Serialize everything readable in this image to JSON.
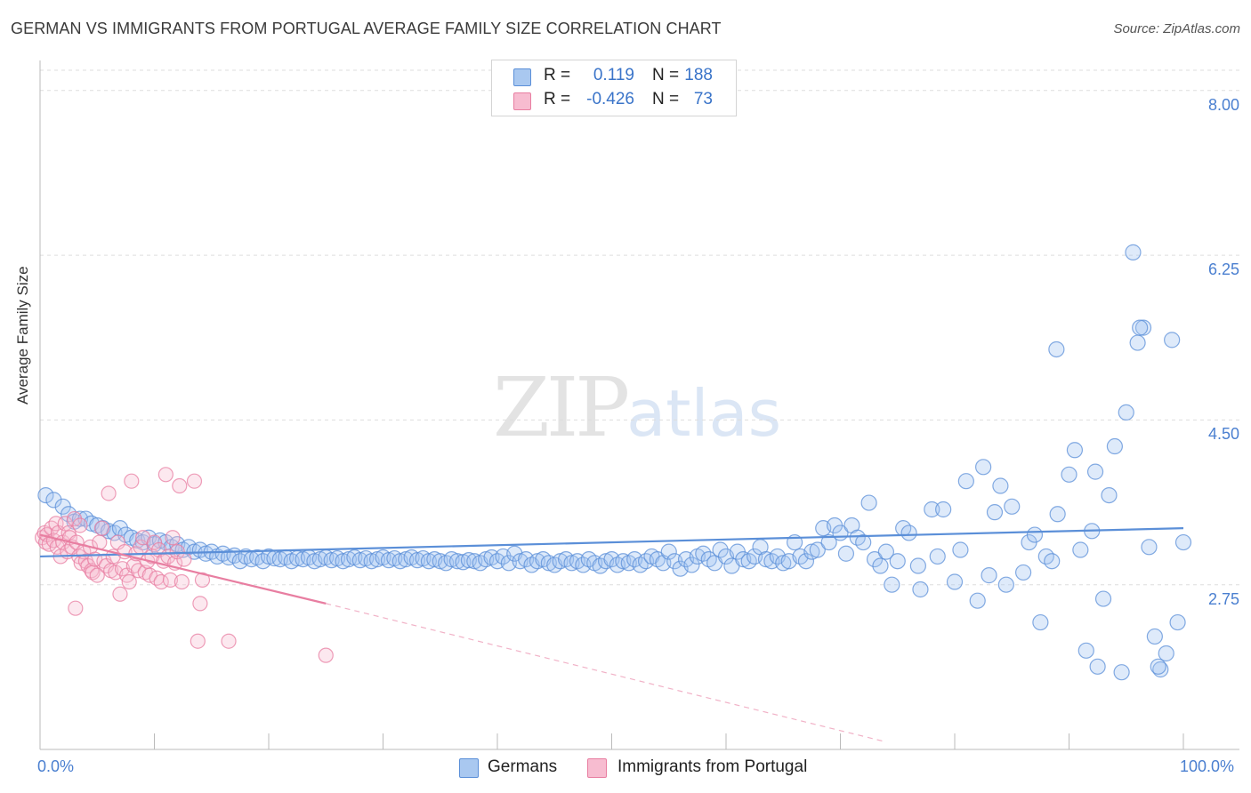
{
  "title": "GERMAN VS IMMIGRANTS FROM PORTUGAL AVERAGE FAMILY SIZE CORRELATION CHART",
  "source": "Source: ZipAtlas.com",
  "watermark": {
    "zip": "ZIP",
    "atlas": "atlas"
  },
  "legend": {
    "rows": [
      {
        "r_label": "R =",
        "r_value": "0.119",
        "n_label": "N =",
        "n_value": "188",
        "color": "#a9c8f0",
        "border": "#5b8fd8"
      },
      {
        "r_label": "R =",
        "r_value": "-0.426",
        "n_label": "N =",
        "n_value": "73",
        "color": "#f7bcd0",
        "border": "#e87ea1"
      }
    ]
  },
  "bottom_legend": [
    {
      "label": "Germans",
      "color": "#a9c8f0",
      "border": "#5b8fd8"
    },
    {
      "label": "Immigrants from Portugal",
      "color": "#f7bcd0",
      "border": "#e87ea1"
    }
  ],
  "chart_data": {
    "type": "scatter",
    "title": "GERMAN VS IMMIGRANTS FROM PORTUGAL AVERAGE FAMILY SIZE CORRELATION CHART",
    "ylabel": "Average Family Size",
    "xlabel": "",
    "xlim": [
      0,
      100
    ],
    "ylim": [
      1.0,
      8.3
    ],
    "x_tick_labels": [
      "0.0%",
      "100.0%"
    ],
    "y_ticks": [
      2.75,
      4.5,
      6.25,
      8.0
    ],
    "y_tick_labels": [
      "2.75",
      "4.50",
      "6.25",
      "8.00"
    ],
    "grid": "horizontal dashed",
    "series": [
      {
        "name": "Germans",
        "color": "#5b8fd8",
        "fill": "rgba(160,195,240,0.35)",
        "trend": {
          "x": [
            0,
            100
          ],
          "y": [
            3.05,
            3.35
          ]
        },
        "points": [
          [
            0.5,
            3.7
          ],
          [
            1.2,
            3.65
          ],
          [
            2,
            3.58
          ],
          [
            2.5,
            3.5
          ],
          [
            3,
            3.42
          ],
          [
            3.5,
            3.45
          ],
          [
            4,
            3.45
          ],
          [
            4.5,
            3.4
          ],
          [
            5,
            3.38
          ],
          [
            5.5,
            3.35
          ],
          [
            6,
            3.32
          ],
          [
            6.5,
            3.3
          ],
          [
            7,
            3.35
          ],
          [
            7.5,
            3.28
          ],
          [
            8,
            3.25
          ],
          [
            8.5,
            3.22
          ],
          [
            9,
            3.2
          ],
          [
            9.5,
            3.25
          ],
          [
            10,
            3.18
          ],
          [
            10.5,
            3.22
          ],
          [
            11,
            3.2
          ],
          [
            11.5,
            3.15
          ],
          [
            12,
            3.18
          ],
          [
            12.5,
            3.12
          ],
          [
            13,
            3.15
          ],
          [
            13.5,
            3.1
          ],
          [
            14,
            3.12
          ],
          [
            14.5,
            3.08
          ],
          [
            15,
            3.1
          ],
          [
            15.5,
            3.05
          ],
          [
            16,
            3.08
          ],
          [
            16.5,
            3.04
          ],
          [
            17,
            3.06
          ],
          [
            17.5,
            3.0
          ],
          [
            18,
            3.05
          ],
          [
            18.5,
            3.02
          ],
          [
            19,
            3.04
          ],
          [
            19.5,
            3.0
          ],
          [
            20,
            3.05
          ],
          [
            20.5,
            3.03
          ],
          [
            21,
            3.02
          ],
          [
            21.5,
            3.04
          ],
          [
            22,
            3.0
          ],
          [
            22.5,
            3.03
          ],
          [
            23,
            3.02
          ],
          [
            23.5,
            3.04
          ],
          [
            24,
            3.0
          ],
          [
            24.5,
            3.02
          ],
          [
            25,
            3.04
          ],
          [
            25.5,
            3.01
          ],
          [
            26,
            3.03
          ],
          [
            26.5,
            3.0
          ],
          [
            27,
            3.02
          ],
          [
            27.5,
            3.04
          ],
          [
            28,
            3.01
          ],
          [
            28.5,
            3.03
          ],
          [
            29,
            3.0
          ],
          [
            29.5,
            3.02
          ],
          [
            30,
            3.04
          ],
          [
            30.5,
            3.01
          ],
          [
            31,
            3.03
          ],
          [
            31.5,
            3.0
          ],
          [
            32,
            3.02
          ],
          [
            32.5,
            3.04
          ],
          [
            33,
            3.01
          ],
          [
            33.5,
            3.03
          ],
          [
            34,
            3.0
          ],
          [
            34.5,
            3.02
          ],
          [
            35,
            3.0
          ],
          [
            35.5,
            2.98
          ],
          [
            36,
            3.02
          ],
          [
            36.5,
            3.0
          ],
          [
            37,
            2.99
          ],
          [
            37.5,
            3.01
          ],
          [
            38,
            3.0
          ],
          [
            38.5,
            2.98
          ],
          [
            39,
            3.02
          ],
          [
            39.5,
            3.04
          ],
          [
            40,
            3.0
          ],
          [
            40.5,
            3.05
          ],
          [
            41,
            2.98
          ],
          [
            41.5,
            3.08
          ],
          [
            42,
            3.0
          ],
          [
            42.5,
            3.02
          ],
          [
            43,
            2.96
          ],
          [
            43.5,
            3.0
          ],
          [
            44,
            3.02
          ],
          [
            44.5,
            2.98
          ],
          [
            45,
            2.96
          ],
          [
            45.5,
            3.0
          ],
          [
            46,
            3.02
          ],
          [
            46.5,
            2.98
          ],
          [
            47,
            3.0
          ],
          [
            47.5,
            2.96
          ],
          [
            48,
            3.02
          ],
          [
            48.5,
            2.98
          ],
          [
            49,
            2.95
          ],
          [
            49.5,
            3.0
          ],
          [
            50,
            3.02
          ],
          [
            50.5,
            2.96
          ],
          [
            51,
            3.0
          ],
          [
            51.5,
            2.98
          ],
          [
            52,
            3.02
          ],
          [
            52.5,
            2.96
          ],
          [
            53,
            3.0
          ],
          [
            53.5,
            3.05
          ],
          [
            54,
            3.02
          ],
          [
            54.5,
            2.98
          ],
          [
            55,
            3.1
          ],
          [
            55.5,
            3.0
          ],
          [
            56,
            2.92
          ],
          [
            56.5,
            3.02
          ],
          [
            57,
            2.96
          ],
          [
            57.5,
            3.05
          ],
          [
            58,
            3.08
          ],
          [
            58.5,
            3.02
          ],
          [
            59,
            2.98
          ],
          [
            59.5,
            3.12
          ],
          [
            60,
            3.05
          ],
          [
            60.5,
            2.95
          ],
          [
            61,
            3.1
          ],
          [
            61.5,
            3.02
          ],
          [
            62,
            3.0
          ],
          [
            62.5,
            3.05
          ],
          [
            63,
            3.15
          ],
          [
            63.5,
            3.02
          ],
          [
            64,
            3.0
          ],
          [
            64.5,
            3.05
          ],
          [
            65,
            2.98
          ],
          [
            65.5,
            3.0
          ],
          [
            66,
            3.2
          ],
          [
            66.5,
            3.05
          ],
          [
            67,
            3.0
          ],
          [
            67.5,
            3.1
          ],
          [
            68,
            3.12
          ],
          [
            68.5,
            3.35
          ],
          [
            69,
            3.2
          ],
          [
            69.5,
            3.38
          ],
          [
            70,
            3.3
          ],
          [
            70.5,
            3.08
          ],
          [
            71,
            3.38
          ],
          [
            71.5,
            3.25
          ],
          [
            72,
            3.2
          ],
          [
            72.5,
            3.62
          ],
          [
            73,
            3.02
          ],
          [
            73.5,
            2.95
          ],
          [
            74,
            3.1
          ],
          [
            74.5,
            2.75
          ],
          [
            75,
            3.0
          ],
          [
            75.5,
            3.35
          ],
          [
            76,
            3.3
          ],
          [
            77,
            2.7
          ],
          [
            78,
            3.55
          ],
          [
            78.5,
            3.05
          ],
          [
            79,
            3.55
          ],
          [
            80,
            2.78
          ],
          [
            80.5,
            3.12
          ],
          [
            81,
            3.85
          ],
          [
            82,
            2.58
          ],
          [
            82.5,
            4.0
          ],
          [
            83,
            2.85
          ],
          [
            83.5,
            3.52
          ],
          [
            84,
            3.8
          ],
          [
            84.5,
            2.75
          ],
          [
            85,
            3.58
          ],
          [
            86,
            2.88
          ],
          [
            86.5,
            3.2
          ],
          [
            87,
            3.28
          ],
          [
            87.5,
            2.35
          ],
          [
            88,
            3.05
          ],
          [
            88.5,
            3.0
          ],
          [
            89,
            3.5
          ],
          [
            90,
            3.92
          ],
          [
            90.5,
            4.18
          ],
          [
            91,
            3.12
          ],
          [
            91.5,
            2.05
          ],
          [
            92,
            3.32
          ],
          [
            92.5,
            1.88
          ],
          [
            93,
            2.6
          ],
          [
            93.5,
            3.7
          ],
          [
            94,
            4.22
          ],
          [
            95,
            4.58
          ],
          [
            96,
            5.32
          ],
          [
            96.5,
            5.48
          ],
          [
            97,
            3.15
          ],
          [
            97.5,
            2.2
          ],
          [
            98,
            1.85
          ],
          [
            98.5,
            2.02
          ],
          [
            99,
            5.35
          ],
          [
            99.5,
            2.35
          ],
          [
            100,
            3.2
          ],
          [
            96.2,
            5.48
          ],
          [
            95.6,
            6.28
          ],
          [
            88.9,
            5.25
          ],
          [
            92.3,
            3.95
          ],
          [
            94.6,
            1.82
          ],
          [
            97.8,
            1.88
          ],
          [
            76.8,
            2.95
          ]
        ]
      },
      {
        "name": "Immigrants from Portugal",
        "color": "#e87ea1",
        "fill": "rgba(247,188,208,0.35)",
        "trend": {
          "x": [
            0,
            25
          ],
          "y": [
            3.28,
            2.55
          ]
        },
        "trend_ext": {
          "x": [
            25,
            74
          ],
          "y": [
            2.55,
            1.08
          ]
        },
        "points": [
          [
            0.2,
            3.25
          ],
          [
            0.4,
            3.3
          ],
          [
            0.5,
            3.2
          ],
          [
            0.6,
            3.28
          ],
          [
            0.8,
            3.18
          ],
          [
            1,
            3.35
          ],
          [
            1.2,
            3.22
          ],
          [
            1.4,
            3.4
          ],
          [
            1.5,
            3.15
          ],
          [
            1.6,
            3.3
          ],
          [
            1.8,
            3.05
          ],
          [
            2,
            3.2
          ],
          [
            2.2,
            3.4
          ],
          [
            2.4,
            3.1
          ],
          [
            2.5,
            3.3
          ],
          [
            2.6,
            3.25
          ],
          [
            2.8,
            3.15
          ],
          [
            3,
            3.45
          ],
          [
            3.2,
            3.2
          ],
          [
            3.4,
            3.05
          ],
          [
            3.5,
            3.38
          ],
          [
            3.6,
            2.98
          ],
          [
            3.8,
            3.1
          ],
          [
            4,
            3.0
          ],
          [
            4.2,
            2.95
          ],
          [
            4.4,
            3.15
          ],
          [
            4.5,
            2.9
          ],
          [
            4.6,
            2.88
          ],
          [
            4.8,
            3.02
          ],
          [
            5,
            2.85
          ],
          [
            5.2,
            3.2
          ],
          [
            5.4,
            3.35
          ],
          [
            5.6,
            3.0
          ],
          [
            5.8,
            2.95
          ],
          [
            6,
            3.72
          ],
          [
            6.2,
            2.9
          ],
          [
            6.4,
            3.05
          ],
          [
            6.6,
            2.88
          ],
          [
            6.8,
            3.2
          ],
          [
            7,
            2.65
          ],
          [
            7.2,
            2.92
          ],
          [
            7.4,
            3.1
          ],
          [
            7.6,
            2.85
          ],
          [
            7.8,
            2.78
          ],
          [
            8,
            3.85
          ],
          [
            8.2,
            2.95
          ],
          [
            8.4,
            3.08
          ],
          [
            8.6,
            2.9
          ],
          [
            8.8,
            3.15
          ],
          [
            9,
            3.25
          ],
          [
            9.2,
            2.88
          ],
          [
            9.4,
            3.0
          ],
          [
            9.6,
            2.85
          ],
          [
            9.8,
            3.05
          ],
          [
            10,
            3.2
          ],
          [
            10.2,
            2.82
          ],
          [
            10.4,
            3.12
          ],
          [
            10.6,
            2.78
          ],
          [
            10.8,
            3.0
          ],
          [
            11,
            3.92
          ],
          [
            11.2,
            3.05
          ],
          [
            11.4,
            2.8
          ],
          [
            11.6,
            3.25
          ],
          [
            11.8,
            2.98
          ],
          [
            12,
            3.1
          ],
          [
            12.2,
            3.8
          ],
          [
            12.4,
            2.78
          ],
          [
            12.6,
            3.02
          ],
          [
            13.5,
            3.85
          ],
          [
            13.8,
            2.15
          ],
          [
            14,
            2.55
          ],
          [
            16.5,
            2.15
          ],
          [
            3.1,
            2.5
          ],
          [
            25,
            2.0
          ],
          [
            14.2,
            2.8
          ]
        ]
      }
    ]
  }
}
